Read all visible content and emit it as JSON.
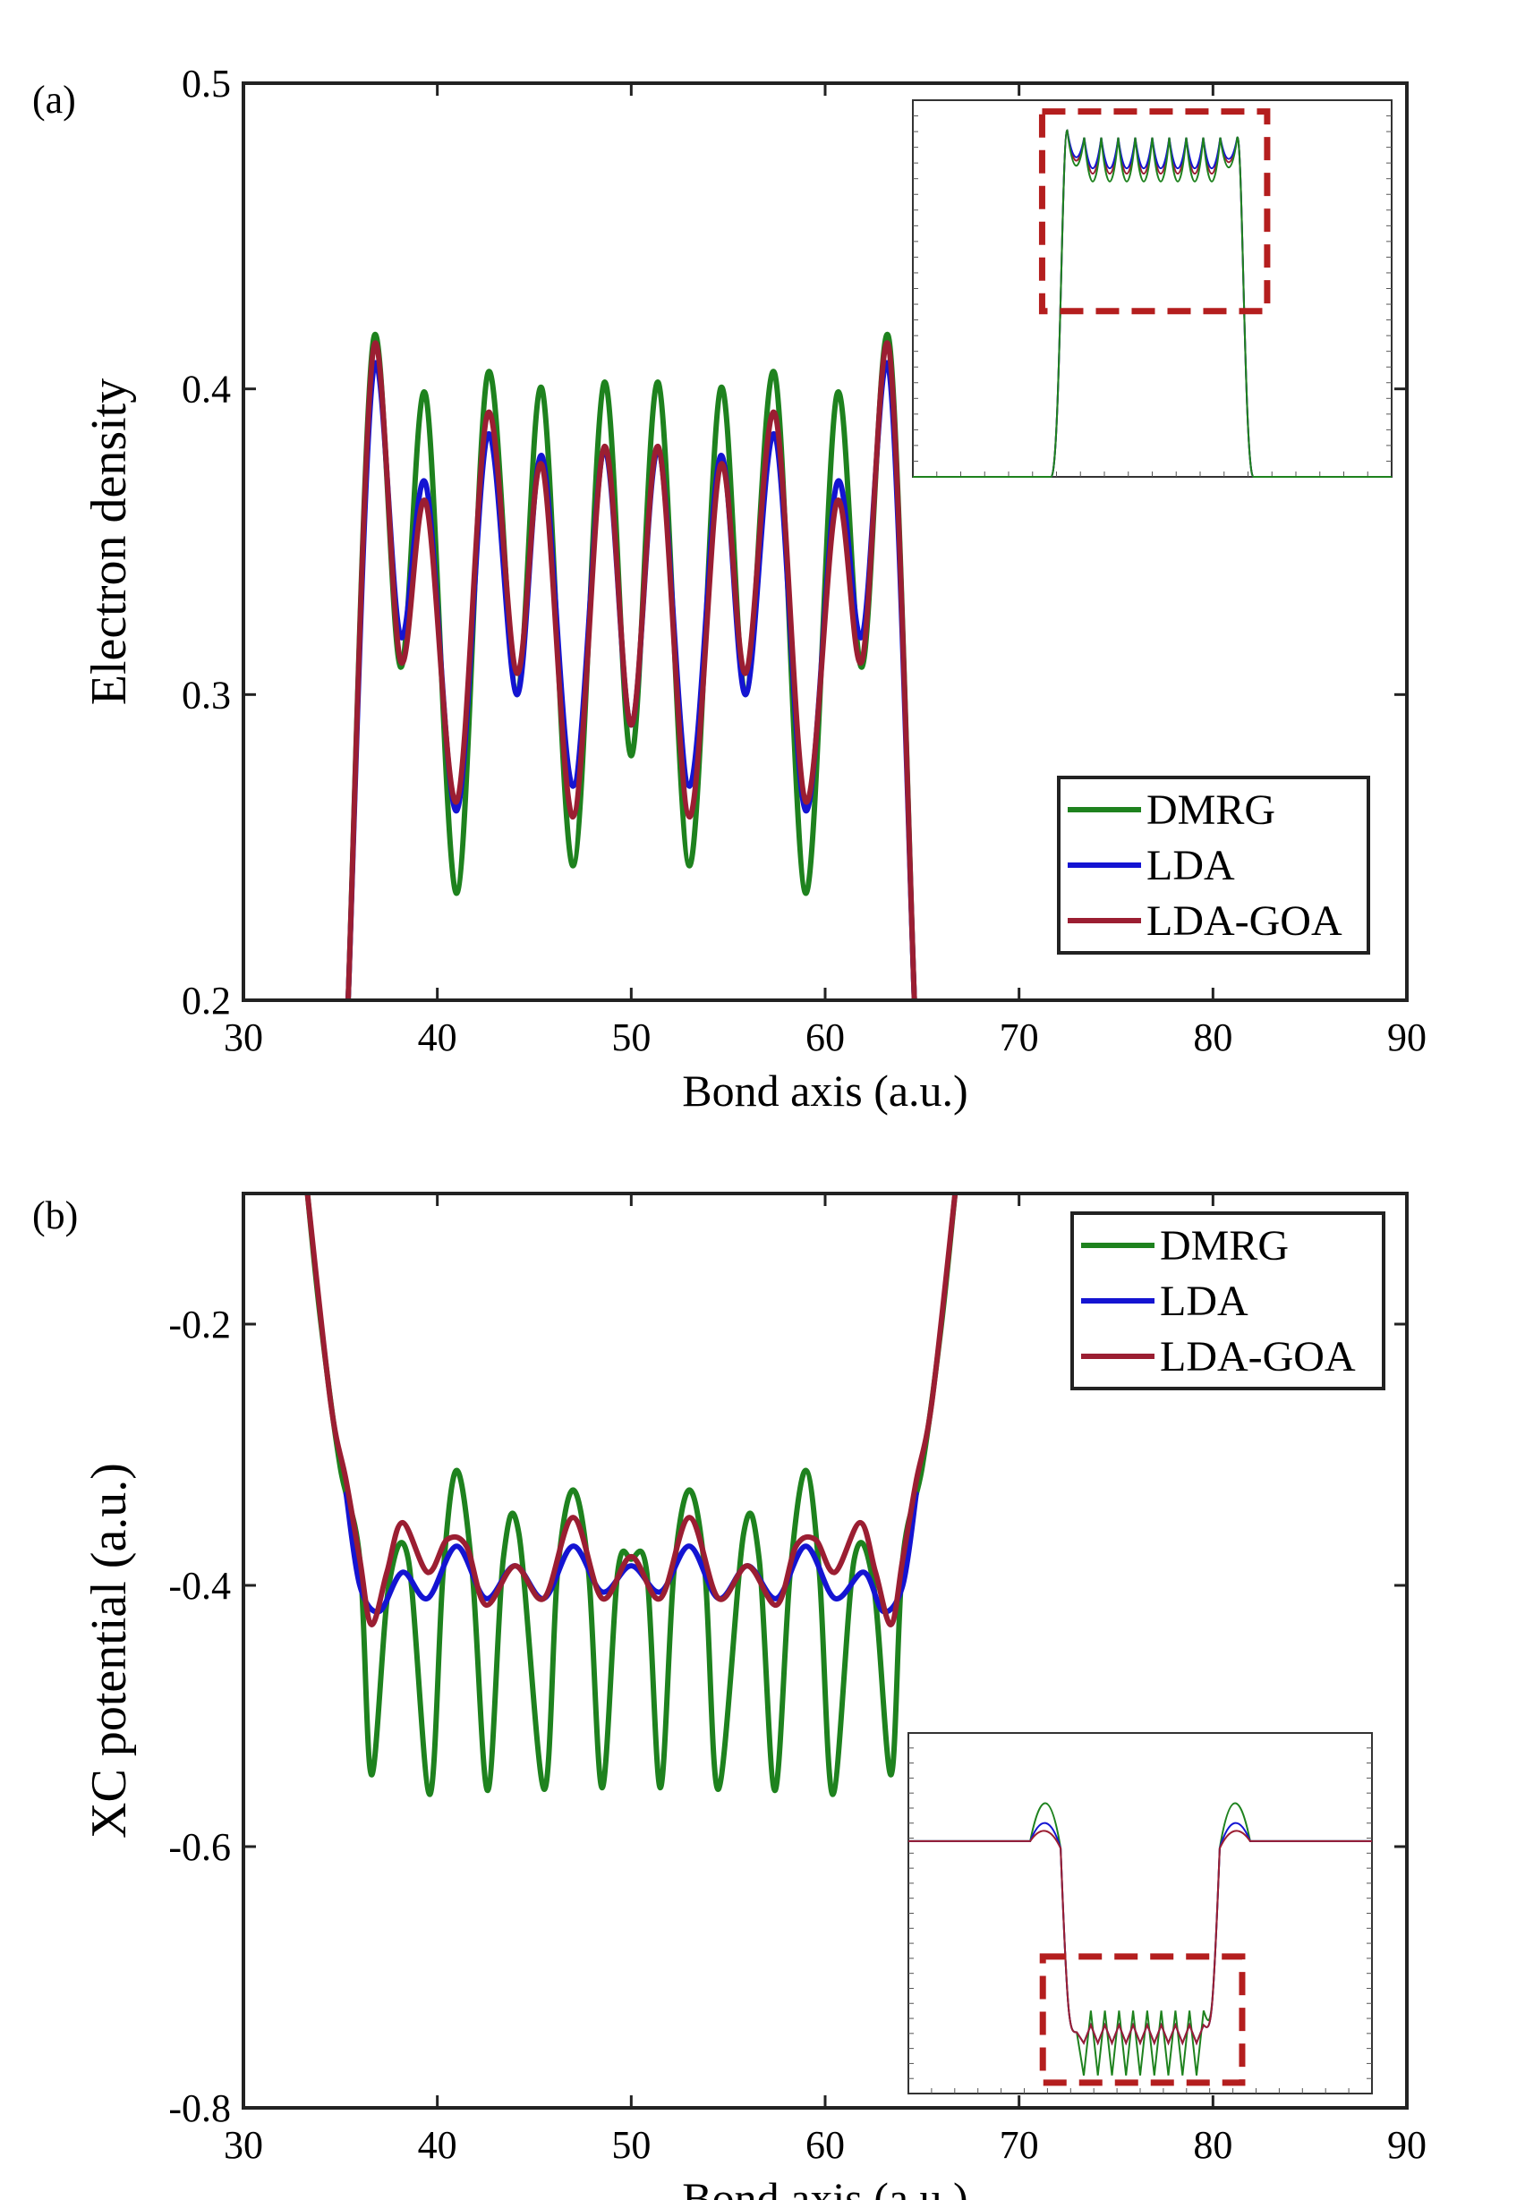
{
  "chart_data": [
    {
      "panel_label": "(a)",
      "type": "line",
      "xlabel": "Bond axis (a.u.)",
      "ylabel": "Electron density",
      "xlim": [
        30,
        90
      ],
      "ylim": [
        0.2,
        0.5
      ],
      "xticks": [
        "30",
        "40",
        "50",
        "60",
        "70",
        "80",
        "90"
      ],
      "yticks": [
        "0.2",
        "0.3",
        "0.4",
        "0.5"
      ],
      "legend": {
        "placement": "bottom-right",
        "entries": [
          {
            "label": "DMRG",
            "color": "#1e821e"
          },
          {
            "label": "LDA",
            "color": "#1414d2"
          },
          {
            "label": "LDA-GOA",
            "color": "#9b1e32"
          }
        ]
      },
      "series": [
        {
          "name": "DMRG",
          "color": "#1e821e",
          "x": [
            35.4,
            36.7,
            38.1,
            39.4,
            41.0,
            42.6,
            44.1,
            45.4,
            47.0,
            48.6,
            50.0,
            51.4,
            53.0,
            54.6,
            55.9,
            57.4,
            59.0,
            60.6,
            61.9,
            63.3,
            64.6
          ],
          "y": [
            0.2,
            0.416,
            0.309,
            0.398,
            0.235,
            0.405,
            0.3,
            0.4,
            0.244,
            0.402,
            0.28,
            0.402,
            0.244,
            0.4,
            0.3,
            0.405,
            0.235,
            0.398,
            0.309,
            0.416,
            0.2
          ]
        },
        {
          "name": "LDA",
          "color": "#1414d2",
          "x": [
            35.4,
            36.7,
            38.1,
            39.4,
            41.0,
            42.6,
            44.1,
            45.4,
            47.0,
            48.6,
            50.0,
            51.4,
            53.0,
            54.6,
            55.9,
            57.4,
            59.0,
            60.6,
            61.9,
            63.3,
            64.6
          ],
          "y": [
            0.2,
            0.406,
            0.319,
            0.369,
            0.262,
            0.385,
            0.3,
            0.378,
            0.27,
            0.38,
            0.29,
            0.38,
            0.27,
            0.378,
            0.3,
            0.385,
            0.262,
            0.369,
            0.319,
            0.406,
            0.2
          ]
        },
        {
          "name": "LDA-GOA",
          "color": "#9b1e32",
          "x": [
            35.4,
            36.7,
            38.1,
            39.4,
            41.0,
            42.6,
            44.1,
            45.4,
            47.0,
            48.6,
            50.0,
            51.4,
            53.0,
            54.6,
            55.9,
            57.4,
            59.0,
            60.6,
            61.9,
            63.3,
            64.6
          ],
          "y": [
            0.2,
            0.413,
            0.311,
            0.363,
            0.265,
            0.392,
            0.307,
            0.375,
            0.26,
            0.381,
            0.29,
            0.381,
            0.26,
            0.375,
            0.307,
            0.392,
            0.265,
            0.363,
            0.311,
            0.413,
            0.2
          ]
        }
      ],
      "inset": {
        "placement": "top-right",
        "highlight": "dashed box around oscillation region"
      }
    },
    {
      "panel_label": "(b)",
      "type": "line",
      "xlabel": "Bond axis (a.u.)",
      "ylabel": "XC potential (a.u.)",
      "xlim": [
        30,
        90
      ],
      "ylim": [
        -0.8,
        -0.1
      ],
      "xticks": [
        "30",
        "40",
        "50",
        "60",
        "70",
        "80",
        "90"
      ],
      "yticks": [
        "-0.2",
        "-0.4",
        "-0.6",
        "-0.8"
      ],
      "legend": {
        "placement": "top-right",
        "entries": [
          {
            "label": "DMRG",
            "color": "#1e821e"
          },
          {
            "label": "LDA",
            "color": "#1414d2"
          },
          {
            "label": "LDA-GOA",
            "color": "#9b1e32"
          }
        ]
      },
      "series": [
        {
          "name": "DMRG",
          "color": "#1e821e",
          "x": [
            33.3,
            34.0,
            35.0,
            36.0,
            36.6,
            37.5,
            38.5,
            39.6,
            40.3,
            41.0,
            41.8,
            42.6,
            43.4,
            44.2,
            45.5,
            46.2,
            47.0,
            47.8,
            48.5,
            49.3,
            50.0,
            50.8,
            51.5,
            52.2,
            53.0,
            53.8,
            54.5,
            55.8,
            56.6,
            57.4,
            58.2,
            59.0,
            59.7,
            60.4,
            61.5,
            62.5,
            63.4,
            64.0,
            65.0,
            66.0,
            66.7
          ],
          "y": [
            -0.1,
            -0.2,
            -0.31,
            -0.38,
            -0.545,
            -0.4,
            -0.38,
            -0.56,
            -0.39,
            -0.312,
            -0.39,
            -0.557,
            -0.38,
            -0.36,
            -0.556,
            -0.39,
            -0.327,
            -0.39,
            -0.555,
            -0.39,
            -0.38,
            -0.39,
            -0.555,
            -0.39,
            -0.327,
            -0.39,
            -0.556,
            -0.36,
            -0.38,
            -0.557,
            -0.39,
            -0.312,
            -0.39,
            -0.56,
            -0.38,
            -0.4,
            -0.545,
            -0.38,
            -0.31,
            -0.2,
            -0.1
          ]
        },
        {
          "name": "LDA",
          "color": "#1414d2",
          "x": [
            35.3,
            36.0,
            37.0,
            38.2,
            39.5,
            41.0,
            42.5,
            44.0,
            45.5,
            47.0,
            48.5,
            50.0,
            51.5,
            53.0,
            54.5,
            56.0,
            57.5,
            59.0,
            60.5,
            62.0,
            63.0,
            64.0,
            64.7
          ],
          "y": [
            -0.33,
            -0.4,
            -0.42,
            -0.39,
            -0.41,
            -0.37,
            -0.41,
            -0.385,
            -0.41,
            -0.37,
            -0.405,
            -0.385,
            -0.405,
            -0.37,
            -0.41,
            -0.385,
            -0.41,
            -0.37,
            -0.41,
            -0.39,
            -0.42,
            -0.4,
            -0.33
          ]
        },
        {
          "name": "LDA-GOA",
          "color": "#9b1e32",
          "x": [
            33.3,
            34.5,
            35.3,
            36.0,
            36.6,
            37.4,
            38.2,
            39.5,
            40.5,
            41.5,
            42.5,
            44.0,
            45.5,
            47.0,
            48.5,
            50.0,
            51.5,
            53.0,
            54.5,
            56.0,
            57.5,
            58.5,
            59.5,
            60.5,
            61.8,
            62.6,
            63.4,
            64.0,
            64.7,
            65.5,
            66.7
          ],
          "y": [
            -0.1,
            -0.26,
            -0.32,
            -0.38,
            -0.43,
            -0.39,
            -0.352,
            -0.39,
            -0.365,
            -0.37,
            -0.415,
            -0.385,
            -0.41,
            -0.348,
            -0.41,
            -0.378,
            -0.41,
            -0.348,
            -0.41,
            -0.385,
            -0.415,
            -0.37,
            -0.365,
            -0.39,
            -0.352,
            -0.39,
            -0.43,
            -0.38,
            -0.32,
            -0.26,
            -0.1
          ]
        }
      ],
      "inset": {
        "placement": "bottom-right",
        "highlight": "dashed box around oscillation region"
      }
    }
  ]
}
